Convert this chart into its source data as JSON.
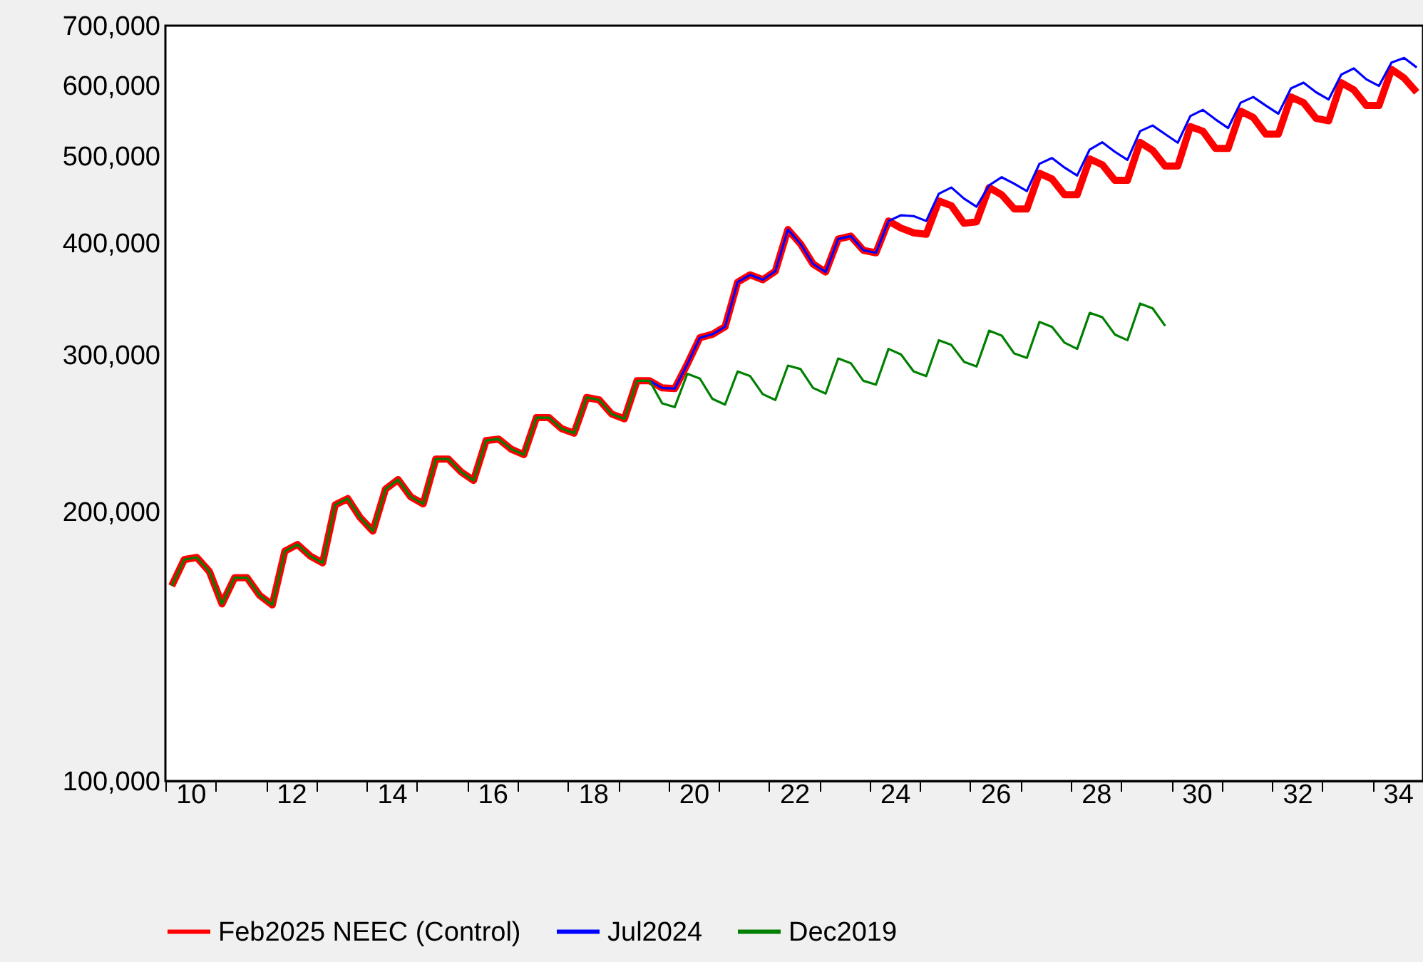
{
  "chart_data": {
    "type": "line",
    "log": "y",
    "legend": "bottom",
    "grid": false,
    "marker": "none",
    "line_style": "solid",
    "x": [
      10.125,
      10.375,
      10.625,
      10.875,
      11.125,
      11.375,
      11.625,
      11.875,
      12.125,
      12.375,
      12.625,
      12.875,
      13.125,
      13.375,
      13.625,
      13.875,
      14.125,
      14.375,
      14.625,
      14.875,
      15.125,
      15.375,
      15.625,
      15.875,
      16.125,
      16.375,
      16.625,
      16.875,
      17.125,
      17.375,
      17.625,
      17.875,
      18.125,
      18.375,
      18.625,
      18.875,
      19.125,
      19.375,
      19.625,
      19.875,
      20.125,
      20.375,
      20.625,
      20.875,
      21.125,
      21.375,
      21.625,
      21.875,
      22.125,
      22.375,
      22.625,
      22.875,
      23.125,
      23.375,
      23.625,
      23.875,
      24.125,
      24.375,
      24.625,
      24.875,
      25.125,
      25.375,
      25.625,
      25.875,
      26.125,
      26.375,
      26.625,
      26.875,
      27.125,
      27.375,
      27.625,
      27.875,
      28.125,
      28.375,
      28.625,
      28.875,
      29.125,
      29.375,
      29.625,
      29.875,
      30.125,
      30.375,
      30.625,
      30.875,
      31.125,
      31.375,
      31.625,
      31.875,
      32.125,
      32.375,
      32.625,
      32.875,
      33.125,
      33.375,
      33.625,
      33.875,
      34.125,
      34.375,
      34.625,
      34.875
    ],
    "xlim": [
      10,
      35
    ],
    "xticks": [
      {
        "value": 10,
        "label": null
      },
      {
        "value": 10.5,
        "label": "10"
      },
      {
        "value": 11,
        "label": null
      },
      {
        "value": 12,
        "label": null
      },
      {
        "value": 12.5,
        "label": "12"
      },
      {
        "value": 13,
        "label": null
      },
      {
        "value": 14,
        "label": null
      },
      {
        "value": 14.5,
        "label": "14"
      },
      {
        "value": 15,
        "label": null
      },
      {
        "value": 16,
        "label": null
      },
      {
        "value": 16.5,
        "label": "16"
      },
      {
        "value": 17,
        "label": null
      },
      {
        "value": 18,
        "label": null
      },
      {
        "value": 18.5,
        "label": "18"
      },
      {
        "value": 19,
        "label": null
      },
      {
        "value": 20,
        "label": null
      },
      {
        "value": 20.5,
        "label": "20"
      },
      {
        "value": 21,
        "label": null
      },
      {
        "value": 22,
        "label": null
      },
      {
        "value": 22.5,
        "label": "22"
      },
      {
        "value": 23,
        "label": null
      },
      {
        "value": 24,
        "label": null
      },
      {
        "value": 24.5,
        "label": "24"
      },
      {
        "value": 25,
        "label": null
      },
      {
        "value": 26,
        "label": null
      },
      {
        "value": 26.5,
        "label": "26"
      },
      {
        "value": 27,
        "label": null
      },
      {
        "value": 28,
        "label": null
      },
      {
        "value": 28.5,
        "label": "28"
      },
      {
        "value": 29,
        "label": null
      },
      {
        "value": 30,
        "label": null
      },
      {
        "value": 30.5,
        "label": "30"
      },
      {
        "value": 31,
        "label": null
      },
      {
        "value": 32,
        "label": null
      },
      {
        "value": 32.5,
        "label": "32"
      },
      {
        "value": 33,
        "label": null
      },
      {
        "value": 34,
        "label": null
      },
      {
        "value": 34.5,
        "label": "34"
      }
    ],
    "ylim": [
      100000,
      700000
    ],
    "yticks": [
      {
        "value": 100000,
        "label": "100,000"
      },
      {
        "value": 200000,
        "label": "200,000"
      },
      {
        "value": 300000,
        "label": "300,000"
      },
      {
        "value": 400000,
        "label": "400,000"
      },
      {
        "value": 500000,
        "label": "500,000"
      },
      {
        "value": 600000,
        "label": "600,000"
      },
      {
        "value": 700000,
        "label": "700,000"
      }
    ],
    "series": [
      {
        "name": "Feb2025 NEEC (Control)",
        "color": "#ff0000",
        "values": [
          165300,
          176900,
          177900,
          171500,
          157800,
          168800,
          168800,
          161300,
          157400,
          180800,
          183900,
          178600,
          175400,
          203700,
          207000,
          197000,
          190400,
          212100,
          217400,
          208000,
          204200,
          229200,
          229200,
          221800,
          216900,
          240400,
          241300,
          235100,
          231800,
          255000,
          255000,
          247900,
          245000,
          268600,
          266900,
          257300,
          254200,
          280400,
          280400,
          275300,
          274800,
          292700,
          313300,
          316100,
          322200,
          361500,
          368400,
          363800,
          371900,
          414000,
          399000,
          378800,
          371100,
          404000,
          407000,
          392400,
          389900,
          423200,
          415500,
          410500,
          409000,
          445600,
          440200,
          420700,
          422300,
          461300,
          452800,
          436500,
          436500,
          478600,
          471600,
          452800,
          452800,
          496600,
          489200,
          469900,
          469900,
          518300,
          507700,
          487500,
          487500,
          539800,
          533300,
          510200,
          510200,
          561500,
          552600,
          529300,
          529300,
          582500,
          574000,
          551200,
          547800,
          604400,
          593300,
          569800,
          569800,
          625400,
          611700,
          589600
        ]
      },
      {
        "name": "Jul2024",
        "color": "#0000ff",
        "values": [
          null,
          null,
          null,
          null,
          null,
          null,
          null,
          null,
          null,
          null,
          null,
          null,
          null,
          null,
          null,
          null,
          null,
          null,
          null,
          null,
          null,
          null,
          null,
          null,
          null,
          null,
          null,
          null,
          null,
          null,
          null,
          null,
          null,
          null,
          null,
          null,
          null,
          null,
          280400,
          275300,
          274800,
          292700,
          313300,
          316100,
          322200,
          361500,
          368400,
          363800,
          371900,
          414000,
          399000,
          378800,
          371100,
          404000,
          407000,
          392400,
          389900,
          423200,
          429500,
          428500,
          423200,
          454000,
          461300,
          448400,
          439100,
          464000,
          473700,
          465800,
          457100,
          490400,
          497700,
          485600,
          475700,
          508800,
          518300,
          505800,
          495300,
          533300,
          541200,
          529300,
          517800,
          554600,
          563500,
          549800,
          537700,
          574000,
          582500,
          569800,
          557900,
          595600,
          604400,
          589600,
          578800,
          617100,
          627000,
          609500,
          599300,
          636600,
          644200,
          628600
        ]
      },
      {
        "name": "Dec2019",
        "color": "#008000",
        "values": [
          165300,
          176900,
          177900,
          171500,
          157800,
          168800,
          168800,
          161300,
          157400,
          180800,
          183900,
          178600,
          175400,
          203700,
          207000,
          197000,
          190400,
          212100,
          217400,
          208000,
          204200,
          229200,
          229200,
          221800,
          216900,
          240400,
          241300,
          235100,
          231800,
          255000,
          255000,
          247900,
          245000,
          268600,
          266900,
          257300,
          254200,
          280400,
          280400,
          264600,
          262000,
          285500,
          282000,
          267600,
          263700,
          287200,
          283800,
          270900,
          266900,
          291600,
          289000,
          275300,
          271300,
          297000,
          293400,
          280400,
          277600,
          304400,
          300000,
          287200,
          283800,
          311300,
          307500,
          294500,
          290900,
          319000,
          315000,
          300800,
          297400,
          326300,
          322200,
          309300,
          304400,
          334000,
          330300,
          315900,
          311300,
          342100,
          337900,
          323000,
          null,
          null,
          null,
          null,
          null,
          null,
          null,
          null,
          null,
          null,
          null,
          null,
          null,
          null,
          null,
          null,
          null,
          null,
          null,
          null
        ]
      }
    ]
  }
}
